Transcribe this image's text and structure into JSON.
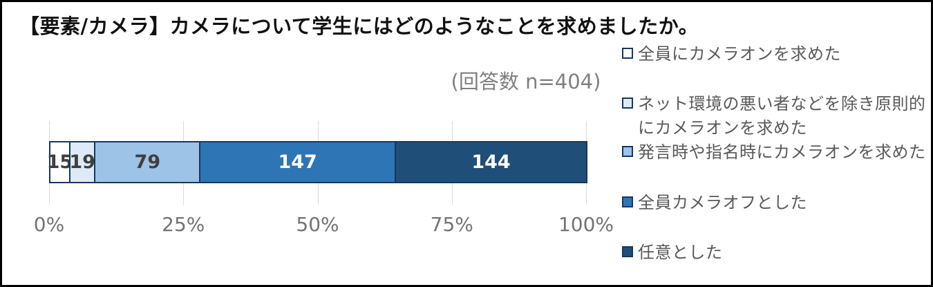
{
  "chart_data": {
    "type": "bar",
    "orientation": "horizontal",
    "stacked": true,
    "title": "【要素/カメラ】カメラについて学生にはどのようなことを求めましたか。",
    "annotation": "(回答数 n=404)",
    "total": 404,
    "series": [
      {
        "name": "全員にカメラオンを求めた",
        "value": 15,
        "fill": "#ffffff",
        "label_color": "#3f3f3f"
      },
      {
        "name": "ネット環境の悪い者などを除き原則的にカメラオンを求めた",
        "value": 19,
        "fill": "#deebf7",
        "label_color": "#3f3f3f"
      },
      {
        "name": "発言時や指名時にカメラオンを求めた",
        "value": 79,
        "fill": "#9dc3e6",
        "label_color": "#3f3f3f"
      },
      {
        "name": "全員カメラオフとした",
        "value": 147,
        "fill": "#2e75b6",
        "label_color": "#ffffff"
      },
      {
        "name": "任意とした",
        "value": 144,
        "fill": "#1f4e79",
        "label_color": "#ffffff"
      }
    ],
    "segment_border_color": "#17375e",
    "x_ticks": [
      "0%",
      "25%",
      "50%",
      "75%",
      "100%"
    ],
    "xlim": [
      0,
      100
    ],
    "grid": true,
    "gridline_color": "#d9d9d9",
    "legend_position": "right"
  }
}
